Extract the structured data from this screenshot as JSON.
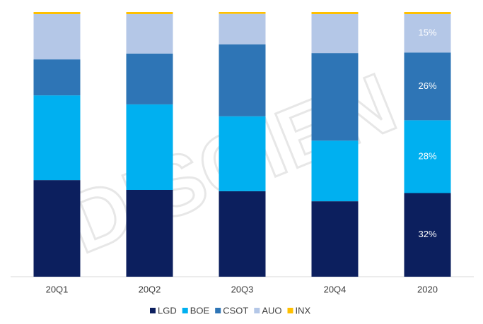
{
  "chart_data": {
    "type": "stacked_bar",
    "watermark": "DISCIEN",
    "categories": [
      "20Q1",
      "20Q2",
      "20Q3",
      "20Q4",
      "2020"
    ],
    "ylim": [
      0,
      100
    ],
    "series": [
      {
        "name": "LGD",
        "color": "#0c1f5e",
        "values": [
          36.5,
          32.8,
          32.3,
          28.5,
          31.6
        ],
        "value_labels": [
          null,
          null,
          null,
          null,
          "32%"
        ]
      },
      {
        "name": "BOE",
        "color": "#00b0f0",
        "values": [
          32,
          32.3,
          28.3,
          22.9,
          27.5
        ],
        "value_labels": [
          null,
          null,
          null,
          null,
          "28%"
        ]
      },
      {
        "name": "CSOT",
        "color": "#2e75b6",
        "values": [
          13.6,
          19.2,
          27.2,
          33.1,
          25.6
        ],
        "value_labels": [
          null,
          null,
          null,
          null,
          "26%"
        ]
      },
      {
        "name": "AUO",
        "color": "#b4c7e7",
        "values": [
          17.1,
          14.9,
          11.5,
          14.7,
          14.5
        ],
        "value_labels": [
          null,
          null,
          null,
          null,
          "15%"
        ]
      },
      {
        "name": "INX",
        "color": "#ffc000",
        "values": [
          0.8,
          0.8,
          0.7,
          0.8,
          0.8
        ]
      }
    ]
  }
}
